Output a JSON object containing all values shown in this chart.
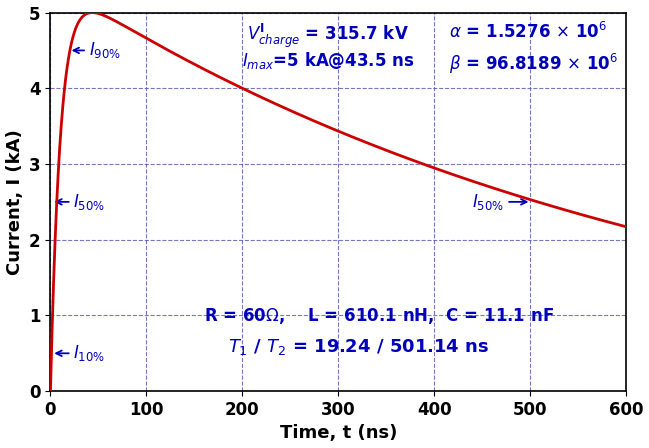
{
  "xlabel": "Time, t (ns)",
  "ylabel": "Current, I (kA)",
  "xlim": [
    0,
    600
  ],
  "ylim": [
    0,
    5
  ],
  "alpha_param": 1527600.0,
  "beta_param": 96818900.0,
  "I_peak": 5.0,
  "t_peak": 43.5,
  "V_charge": "315.7 kV",
  "T1": "19.24",
  "T2": "501.14",
  "I_50pct": 2.5,
  "I_90pct": 4.5,
  "I_10pct": 0.5,
  "t_90pct_rise": 19.24,
  "t_50pct_fall": 501.14,
  "curve_color": "#cc0000",
  "grid_color": "#5555aa",
  "text_color": "#0000bb",
  "annotation_color": "#000000",
  "bg_color": "#ffffff",
  "tick_fontsize": 12,
  "label_fontsize": 13,
  "annotation_fontsize": 11
}
